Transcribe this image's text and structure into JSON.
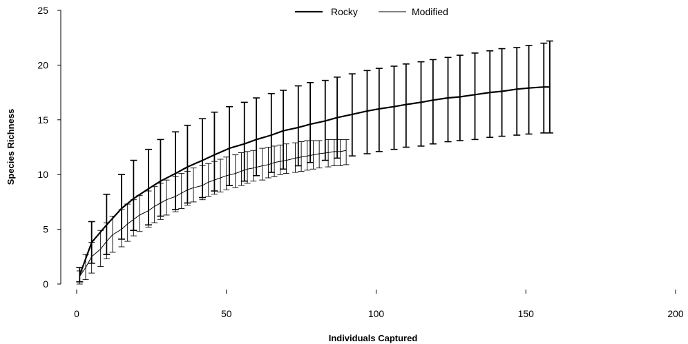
{
  "chart_data": {
    "type": "line",
    "title": "",
    "xlabel": "Individuals Captured",
    "ylabel": "Species Richness",
    "xlim": [
      0,
      200
    ],
    "ylim": [
      0,
      25
    ],
    "xticks": [
      0,
      50,
      100,
      150,
      200
    ],
    "yticks": [
      0,
      5,
      10,
      15,
      20,
      25
    ],
    "grid": false,
    "legend_position": "top-center",
    "series": [
      {
        "name": "Rocky",
        "style": "thick",
        "color": "#000000",
        "x": [
          1,
          5,
          10,
          15,
          19,
          24,
          28,
          33,
          37,
          42,
          46,
          51,
          56,
          60,
          65,
          69,
          74,
          78,
          83,
          87,
          92,
          97,
          101,
          106,
          110,
          115,
          119,
          124,
          128,
          133,
          138,
          142,
          147,
          151,
          156,
          158
        ],
        "y": [
          0.8,
          3.8,
          5.4,
          6.9,
          7.8,
          8.7,
          9.4,
          10.1,
          10.7,
          11.3,
          11.8,
          12.4,
          12.8,
          13.2,
          13.6,
          14.0,
          14.3,
          14.6,
          14.9,
          15.2,
          15.5,
          15.8,
          16.0,
          16.2,
          16.4,
          16.6,
          16.8,
          17.0,
          17.1,
          17.3,
          17.5,
          17.6,
          17.8,
          17.9,
          18.0,
          18.0
        ],
        "err_low": [
          0.2,
          1.9,
          2.7,
          4.1,
          4.9,
          5.4,
          6.2,
          6.8,
          7.4,
          7.9,
          8.5,
          9.0,
          9.4,
          9.9,
          10.2,
          10.5,
          10.8,
          11.1,
          11.3,
          11.5,
          11.7,
          11.9,
          12.1,
          12.3,
          12.5,
          12.6,
          12.8,
          13.0,
          13.1,
          13.2,
          13.4,
          13.5,
          13.6,
          13.7,
          13.8,
          13.8
        ],
        "err_high": [
          1.5,
          5.7,
          8.2,
          10.0,
          11.3,
          12.3,
          13.2,
          13.9,
          14.5,
          15.1,
          15.7,
          16.2,
          16.6,
          17.0,
          17.4,
          17.7,
          18.1,
          18.4,
          18.6,
          18.9,
          19.2,
          19.5,
          19.7,
          19.9,
          20.1,
          20.3,
          20.5,
          20.7,
          20.9,
          21.1,
          21.3,
          21.5,
          21.6,
          21.8,
          22.0,
          22.2
        ]
      },
      {
        "name": "Modified",
        "style": "thin",
        "color": "#000000",
        "x": [
          1,
          3,
          5,
          8,
          10,
          12,
          15,
          17,
          19,
          21,
          24,
          26,
          28,
          30,
          33,
          35,
          37,
          39,
          42,
          44,
          46,
          48,
          50,
          53,
          55,
          57,
          59,
          62,
          64,
          66,
          68,
          70,
          73,
          75,
          77,
          79,
          81,
          84,
          86,
          88,
          90
        ],
        "y": [
          0.7,
          1.5,
          2.5,
          3.2,
          3.9,
          4.5,
          5.0,
          5.5,
          5.9,
          6.3,
          6.7,
          7.1,
          7.4,
          7.7,
          8.0,
          8.3,
          8.6,
          8.8,
          9.0,
          9.3,
          9.5,
          9.7,
          9.9,
          10.1,
          10.3,
          10.5,
          10.6,
          10.8,
          10.9,
          11.1,
          11.2,
          11.3,
          11.5,
          11.6,
          11.7,
          11.8,
          11.9,
          12.0,
          12.1,
          12.1,
          12.2
        ],
        "err_low": [
          0.0,
          0.4,
          1.0,
          1.6,
          2.3,
          2.9,
          3.4,
          3.9,
          4.4,
          4.8,
          5.2,
          5.6,
          5.9,
          6.3,
          6.6,
          6.9,
          7.2,
          7.5,
          7.7,
          8.0,
          8.2,
          8.4,
          8.6,
          8.8,
          9.0,
          9.2,
          9.4,
          9.5,
          9.7,
          9.8,
          10.0,
          10.1,
          10.2,
          10.3,
          10.4,
          10.5,
          10.6,
          10.7,
          10.8,
          10.8,
          10.9
        ],
        "err_high": [
          1.2,
          2.7,
          3.8,
          4.9,
          5.6,
          6.2,
          6.8,
          7.3,
          7.7,
          8.1,
          8.5,
          8.9,
          9.2,
          9.5,
          9.8,
          10.1,
          10.3,
          10.6,
          10.8,
          11.0,
          11.2,
          11.4,
          11.6,
          11.8,
          12.0,
          12.1,
          12.2,
          12.4,
          12.5,
          12.6,
          12.7,
          12.8,
          12.9,
          13.0,
          13.1,
          13.1,
          13.1,
          13.2,
          13.2,
          13.2,
          13.2
        ]
      }
    ]
  }
}
